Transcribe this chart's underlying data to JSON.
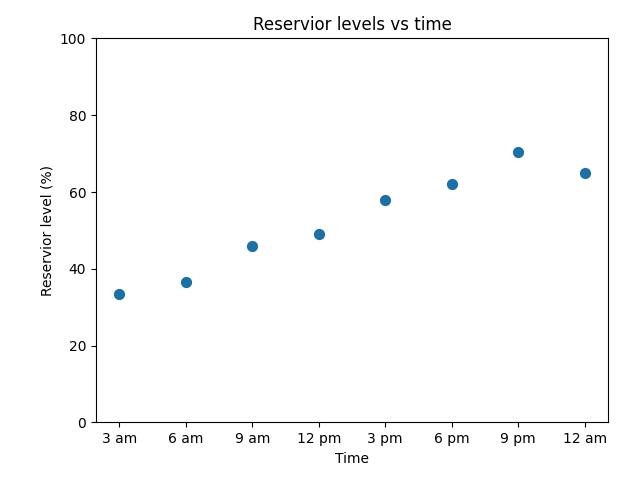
{
  "title": "Reservior levels vs time",
  "xlabel": "Time",
  "ylabel": "Reservior level (%)",
  "x_labels": [
    "3 am",
    "6 am",
    "9 am",
    "12 pm",
    "3 pm",
    "6 pm",
    "9 pm",
    "12 am"
  ],
  "x_values": [
    0,
    1,
    2,
    3,
    4,
    5,
    6,
    7
  ],
  "y_values": [
    33.5,
    36.5,
    46.0,
    49.0,
    58.0,
    62.0,
    70.5,
    65.0
  ],
  "ylim": [
    0,
    100
  ],
  "marker_color": "#1f6fa4",
  "marker_size": 50,
  "figsize": [
    6.4,
    4.8
  ],
  "dpi": 100
}
